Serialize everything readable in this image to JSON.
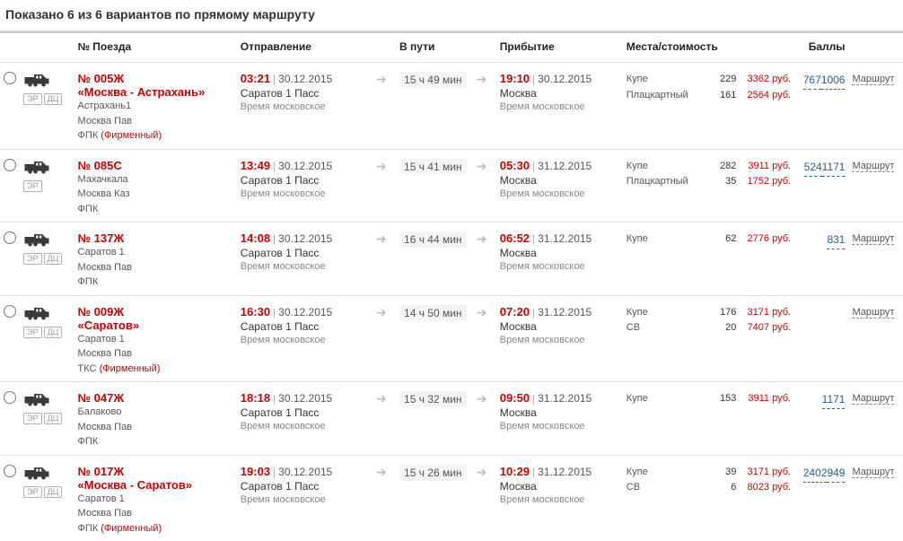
{
  "title": "Показано 6 из 6 вариантов по прямому маршруту",
  "headers": {
    "train": "№ Поезда",
    "departure": "Отправление",
    "duration": "В пути",
    "arrival": "Прибытие",
    "seats": "Места/стоимость",
    "points": "Баллы"
  },
  "routeLabel": "Маршрут",
  "tzLabel": "Время московское",
  "badges": {
    "er": "ЭР",
    "dc": "ДЦ"
  },
  "trains": [
    {
      "no": "№ 005Ж",
      "name": "«Москва - Астрахань»",
      "route": [
        "Астрахань1",
        "Москва Пав"
      ],
      "carrier": "ФПК",
      "firm": "(Фирменный)",
      "showDc": true,
      "depTime": "03:21",
      "depDate": "30.12.2015",
      "depStation": "Саратов 1 Пасс",
      "duration": "15 ч 49 мин",
      "arrTime": "19:10",
      "arrDate": "30.12.2015",
      "arrStation": "Москва",
      "seats": [
        {
          "type": "Купе",
          "count": "229",
          "price": "3362 руб.",
          "points": "1006"
        },
        {
          "type": "Плацкартный",
          "count": "161",
          "price": "2564 руб.",
          "points": "767"
        }
      ]
    },
    {
      "no": "№ 085С",
      "name": "",
      "route": [
        "Махачкала",
        "Москва Каз"
      ],
      "carrier": "ФПК",
      "firm": "",
      "showDc": false,
      "depTime": "13:49",
      "depDate": "30.12.2015",
      "depStation": "Саратов 1 Пасс",
      "duration": "15 ч 41 мин",
      "arrTime": "05:30",
      "arrDate": "31.12.2015",
      "arrStation": "Москва",
      "seats": [
        {
          "type": "Купе",
          "count": "282",
          "price": "3911 руб.",
          "points": "1171"
        },
        {
          "type": "Плацкартный",
          "count": "35",
          "price": "1752 руб.",
          "points": "524"
        }
      ]
    },
    {
      "no": "№ 137Ж",
      "name": "",
      "route": [
        "Саратов 1",
        "Москва Пав"
      ],
      "carrier": "ФПК",
      "firm": "",
      "showDc": true,
      "depTime": "14:08",
      "depDate": "30.12.2015",
      "depStation": "Саратов 1 Пасс",
      "duration": "16 ч 44 мин",
      "arrTime": "06:52",
      "arrDate": "31.12.2015",
      "arrStation": "Москва",
      "seats": [
        {
          "type": "Купе",
          "count": "62",
          "price": "2776 руб.",
          "points": "831"
        }
      ]
    },
    {
      "no": "№ 009Ж",
      "name": "«Саратов»",
      "route": [
        "Саратов 1",
        "Москва Пав"
      ],
      "carrier": "ТКС",
      "firm": "(Фирменный)",
      "showDc": true,
      "depTime": "16:30",
      "depDate": "30.12.2015",
      "depStation": "Саратов 1 Пасс",
      "duration": "14 ч 50 мин",
      "arrTime": "07:20",
      "arrDate": "31.12.2015",
      "arrStation": "Москва",
      "seats": [
        {
          "type": "Купе",
          "count": "176",
          "price": "3171 руб.",
          "points": ""
        },
        {
          "type": "СВ",
          "count": "20",
          "price": "7407 руб.",
          "points": ""
        }
      ]
    },
    {
      "no": "№ 047Ж",
      "name": "",
      "route": [
        "Балаково",
        "Москва Пав"
      ],
      "carrier": "ФПК",
      "firm": "",
      "showDc": true,
      "depTime": "18:18",
      "depDate": "30.12.2015",
      "depStation": "Саратов 1 Пасс",
      "duration": "15 ч 32 мин",
      "arrTime": "09:50",
      "arrDate": "31.12.2015",
      "arrStation": "Москва",
      "seats": [
        {
          "type": "Купе",
          "count": "153",
          "price": "3911 руб.",
          "points": "1171"
        }
      ]
    },
    {
      "no": "№ 017Ж",
      "name": "«Москва - Саратов»",
      "route": [
        "Саратов 1",
        "Москва Пав"
      ],
      "carrier": "ФПК",
      "firm": "(Фирменный)",
      "showDc": true,
      "depTime": "19:03",
      "depDate": "30.12.2015",
      "depStation": "Саратов 1 Пасс",
      "duration": "15 ч 26 мин",
      "arrTime": "10:29",
      "arrDate": "31.12.2015",
      "arrStation": "Москва",
      "seats": [
        {
          "type": "Купе",
          "count": "39",
          "price": "3171 руб.",
          "points": "949"
        },
        {
          "type": "СВ",
          "count": "6",
          "price": "8023 руб.",
          "points": "2402"
        }
      ]
    }
  ]
}
